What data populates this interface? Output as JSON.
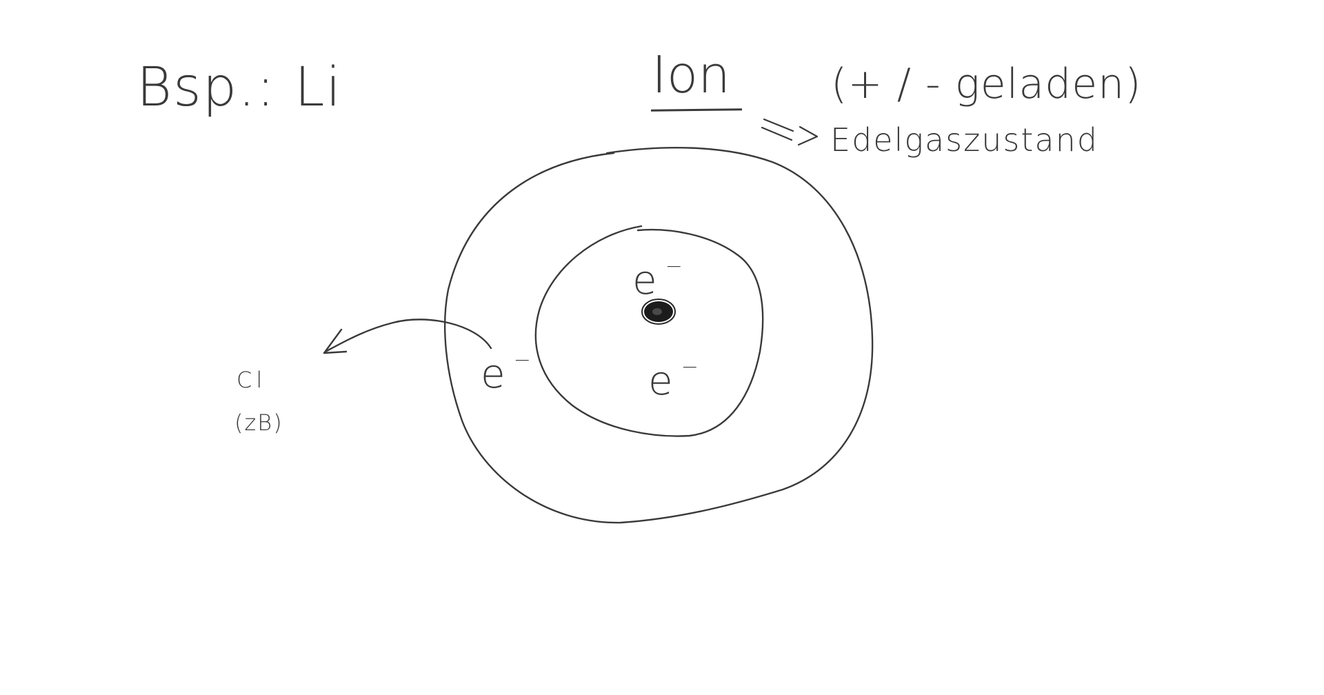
{
  "example": {
    "label": "Bsp.: Li"
  },
  "ion": {
    "title": "Ion",
    "charge_note": "(+ / - geladen)",
    "noble_gas": "Edelgaszustand"
  },
  "acceptor": {
    "label": "Cl",
    "note": "(zB)"
  },
  "electrons": [
    {
      "symbol": "e",
      "charge": "−"
    },
    {
      "symbol": "e",
      "charge": "−"
    },
    {
      "symbol": "e",
      "charge": "−"
    }
  ],
  "colors": {
    "ink": "#3a3a3a",
    "nucleus": "#1c1c1c",
    "background": "#ffffff"
  }
}
